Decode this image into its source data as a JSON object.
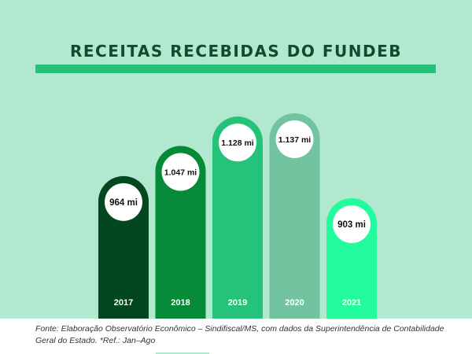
{
  "chart_data": {
    "type": "bar",
    "title": "RECEITAS RECEBIDAS DO FUNDEB",
    "categories": [
      "2017",
      "2018",
      "2019",
      "2020",
      "2021"
    ],
    "values": [
      964,
      1047,
      1128,
      1137,
      903
    ],
    "value_labels": [
      "964 mi",
      "1.047 mi",
      "1.128 mi",
      "1.137 mi",
      "903 mi"
    ],
    "bar_colors": [
      "#03471f",
      "#058b37",
      "#25c379",
      "#71c49f",
      "#23fc9d"
    ],
    "xlabel": "",
    "ylabel": "",
    "grid": false,
    "legend": "none"
  },
  "footer": {
    "source": "Fonte: Elaboração Observatório Econômico – Sindifiscal/MS, com dados da Superintendência de Contabilidade Geral do Estado. *Ref.: Jan–Ago"
  },
  "colors": {
    "background": "#b3e8d0",
    "title": "#0f4d2a",
    "accent_bar": "#26c17a",
    "label_circle": "#ffffff"
  }
}
